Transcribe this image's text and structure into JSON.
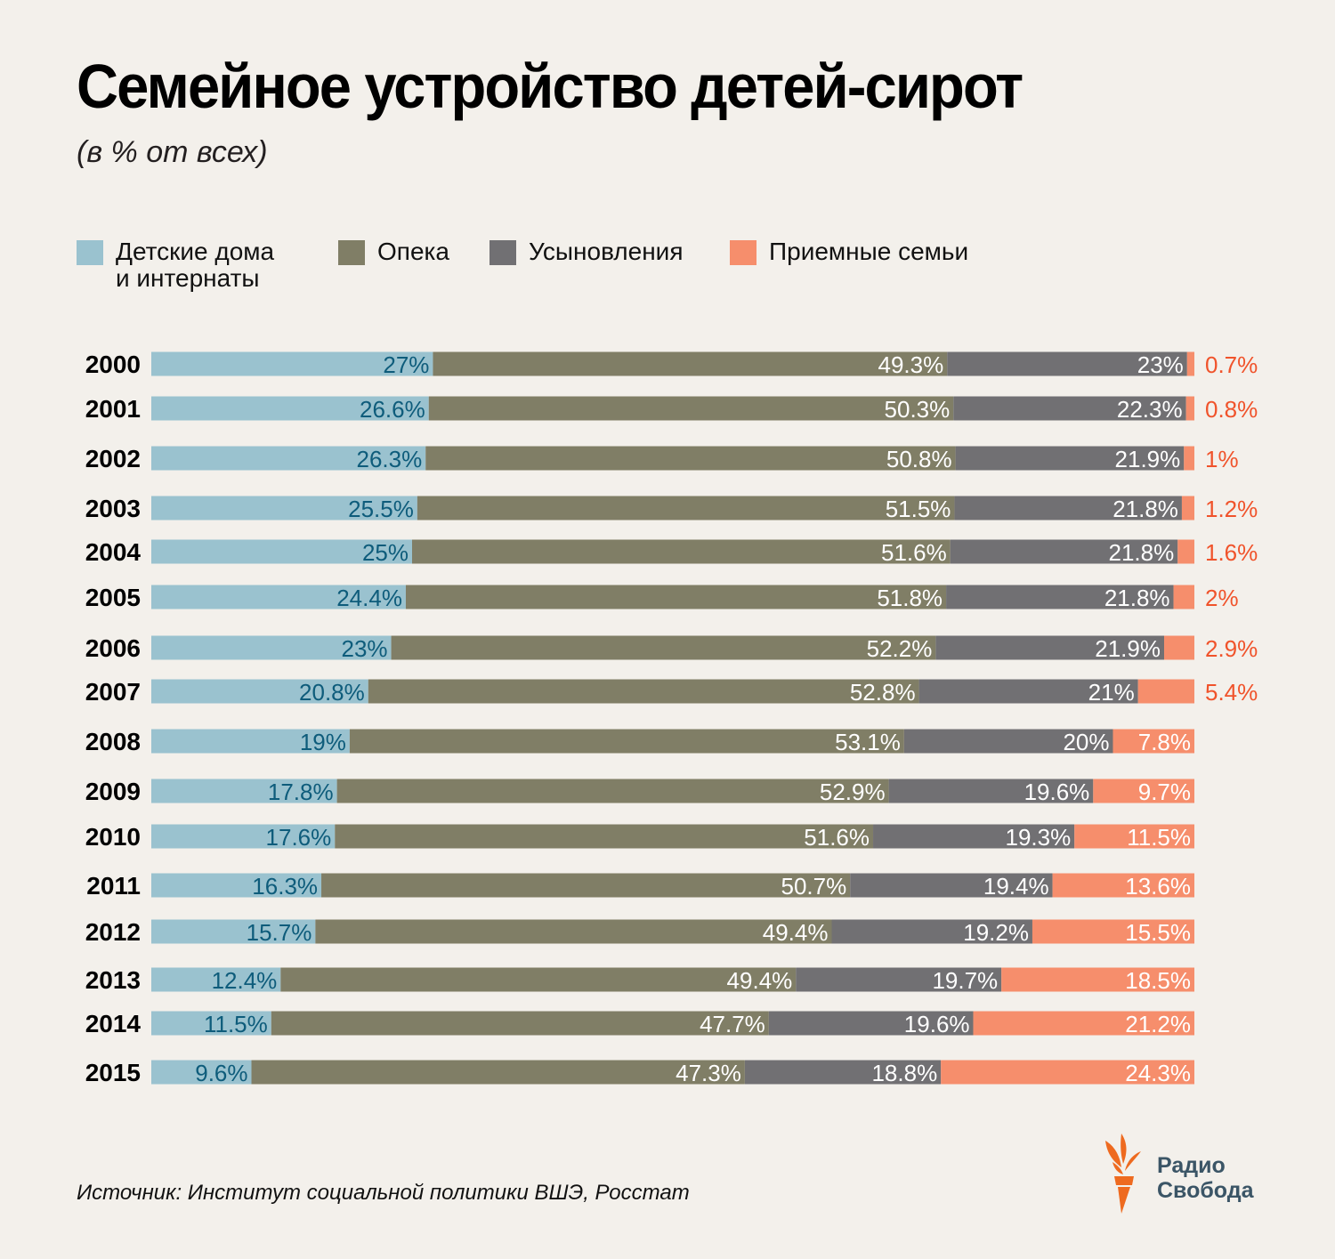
{
  "header": {
    "title": "Семейное устройство детей-сирот",
    "subtitle": "(в % от всех)"
  },
  "legend": [
    {
      "label": "Детские дома\nи интернаты",
      "color": "#9ac2cf"
    },
    {
      "label": "Опека",
      "color": "#807e66"
    },
    {
      "label": "Усыновления",
      "color": "#717073"
    },
    {
      "label": "Приемные семьи",
      "color": "#f68e6c"
    }
  ],
  "label_colors": {
    "orphanages": "#0e5c7b",
    "guardianship": "#ffffff",
    "adoption": "#ffffff",
    "foster_inside": "#ffffff",
    "foster_outside": "#f0532b"
  },
  "chart_data": {
    "type": "bar",
    "orientation": "horizontal",
    "stacked": true,
    "title": "Семейное устройство детей-сирот",
    "subtitle": "(в % от всех)",
    "xlabel": "",
    "ylabel": "",
    "xlim": [
      0,
      100
    ],
    "grid": false,
    "legend_position": "top",
    "categories": [
      "2000",
      "2001",
      "2002",
      "2003",
      "2004",
      "2005",
      "2006",
      "2007",
      "2008",
      "2009",
      "2010",
      "2011",
      "2012",
      "2013",
      "2014",
      "2015"
    ],
    "series": [
      {
        "name": "Детские дома и интернаты",
        "values": [
          27,
          26.6,
          26.3,
          25.5,
          25,
          24.4,
          23,
          20.8,
          19,
          17.8,
          17.6,
          16.3,
          15.7,
          12.4,
          11.5,
          9.6
        ],
        "labels": [
          "27%",
          "26.6%",
          "26.3%",
          "25.5%",
          "25%",
          "24.4%",
          "23%",
          "20.8%",
          "19%",
          "17.8%",
          "17.6%",
          "16.3%",
          "15.7%",
          "12.4%",
          "11.5%",
          "9.6%"
        ]
      },
      {
        "name": "Опека",
        "values": [
          49.3,
          50.3,
          50.8,
          51.5,
          51.6,
          51.8,
          52.2,
          52.8,
          53.1,
          52.9,
          51.6,
          50.7,
          49.4,
          49.4,
          47.7,
          47.3
        ],
        "labels": [
          "49.3%",
          "50.3%",
          "50.8%",
          "51.5%",
          "51.6%",
          "51.8%",
          "52.2%",
          "52.8%",
          "53.1%",
          "52.9%",
          "51.6%",
          "50.7%",
          "49.4%",
          "49.4%",
          "47.7%",
          "47.3%"
        ]
      },
      {
        "name": "Усыновления",
        "values": [
          23,
          22.3,
          21.9,
          21.8,
          21.8,
          21.8,
          21.9,
          21,
          20,
          19.6,
          19.3,
          19.4,
          19.2,
          19.7,
          19.6,
          18.8
        ],
        "labels": [
          "23%",
          "22.3%",
          "21.9%",
          "21.8%",
          "21.8%",
          "21.8%",
          "21.9%",
          "21%",
          "20%",
          "19.6%",
          "19.3%",
          "19.4%",
          "19.2%",
          "19.7%",
          "19.6%",
          "18.8%"
        ]
      },
      {
        "name": "Приемные семьи",
        "values": [
          0.7,
          0.8,
          1,
          1.2,
          1.6,
          2,
          2.9,
          5.4,
          7.8,
          9.7,
          11.5,
          13.6,
          15.5,
          18.5,
          21.2,
          24.3
        ],
        "labels": [
          "0.7%",
          "0.8%",
          "1%",
          "1.2%",
          "1.6%",
          "2%",
          "2.9%",
          "5.4%",
          "7.8%",
          "9.7%",
          "11.5%",
          "13.6%",
          "15.5%",
          "18.5%",
          "21.2%",
          "24.3%"
        ]
      }
    ],
    "source": "Источник: Институт социальной политики ВШЭ, Росстат"
  },
  "footer": {
    "source": "Источник: Институт социальной политики ВШЭ, Росстат",
    "logo_line1": "Радио",
    "logo_line2": "Свобода"
  }
}
